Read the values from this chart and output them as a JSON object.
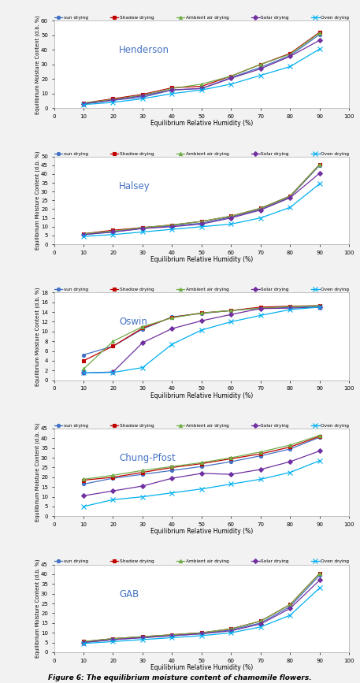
{
  "x": [
    10,
    20,
    30,
    40,
    50,
    60,
    70,
    80,
    90
  ],
  "series_labels": [
    "sun drying",
    "Shadow drying",
    "Ambient air drying",
    "Solar drying",
    "Oven drying"
  ],
  "series_colors": [
    "#4472C4",
    "#C00000",
    "#70AD47",
    "#7030A0",
    "#00B0F0"
  ],
  "series_markers": [
    "o",
    "s",
    "^",
    "D",
    "x"
  ],
  "series_markersizes": [
    3,
    3,
    3,
    3,
    4
  ],
  "subplot_titles": [
    "Henderson",
    "Halsey",
    "Oswin",
    "Chung-Pfost",
    "GAB"
  ],
  "subplot_title_color": "#4472C4",
  "xlabel": "Equilibrium Relative Humidity (%)",
  "ylabel": "Equilibrium Moisture Content (d.b. %)",
  "figure_caption": "Figure 6: The equilibrium moisture content of chamomile flowers.",
  "henderson": {
    "sun": [
      3.0,
      5.5,
      7.5,
      12.5,
      13.5,
      21.0,
      28.0,
      36.0,
      50.5
    ],
    "shadow": [
      3.5,
      6.5,
      9.5,
      14.0,
      15.0,
      22.0,
      30.0,
      37.5,
      52.0
    ],
    "ambient": [
      3.5,
      6.0,
      9.0,
      13.5,
      16.5,
      22.0,
      30.0,
      37.0,
      51.5
    ],
    "solar": [
      3.0,
      5.5,
      8.5,
      12.5,
      13.5,
      20.5,
      27.0,
      35.5,
      46.5
    ],
    "oven": [
      2.5,
      4.0,
      6.5,
      10.0,
      12.5,
      16.5,
      22.5,
      28.5,
      40.5
    ]
  },
  "halsey": {
    "sun": [
      5.5,
      7.0,
      9.0,
      10.5,
      12.0,
      15.5,
      20.0,
      27.0,
      45.0
    ],
    "shadow": [
      6.0,
      8.0,
      9.5,
      11.0,
      13.0,
      16.0,
      20.5,
      27.5,
      45.5
    ],
    "ambient": [
      6.0,
      7.5,
      9.5,
      11.0,
      13.0,
      16.0,
      20.5,
      27.5,
      45.5
    ],
    "solar": [
      5.5,
      7.0,
      9.0,
      10.0,
      11.5,
      15.0,
      19.5,
      26.5,
      40.5
    ],
    "oven": [
      4.5,
      5.5,
      7.0,
      8.5,
      10.0,
      11.5,
      15.0,
      21.0,
      34.5
    ]
  },
  "oswin": {
    "sun": [
      5.2,
      7.0,
      10.5,
      13.0,
      13.7,
      14.3,
      14.8,
      14.9,
      15.2
    ],
    "shadow": [
      4.0,
      7.0,
      10.7,
      12.9,
      13.8,
      14.3,
      15.0,
      15.2,
      15.3
    ],
    "ambient": [
      2.3,
      8.0,
      11.0,
      12.8,
      13.8,
      14.3,
      14.8,
      15.1,
      15.3
    ],
    "solar": [
      1.5,
      1.7,
      7.7,
      10.6,
      12.2,
      13.5,
      14.7,
      14.8,
      15.0
    ],
    "oven": [
      1.5,
      1.6,
      2.6,
      7.4,
      10.3,
      12.0,
      13.3,
      14.5,
      15.0
    ]
  },
  "chung": {
    "sun": [
      16.5,
      19.5,
      21.5,
      23.5,
      25.5,
      28.0,
      31.0,
      34.5,
      40.5
    ],
    "shadow": [
      18.5,
      20.0,
      22.5,
      25.0,
      27.0,
      29.5,
      32.0,
      35.5,
      41.0
    ],
    "ambient": [
      19.0,
      21.0,
      23.5,
      25.5,
      27.5,
      30.0,
      33.0,
      36.5,
      41.5
    ],
    "solar": [
      10.5,
      13.0,
      15.5,
      19.5,
      22.0,
      21.5,
      24.0,
      28.0,
      33.5
    ],
    "oven": [
      5.0,
      8.5,
      10.0,
      12.0,
      14.0,
      16.5,
      19.0,
      22.5,
      28.5
    ]
  },
  "gab": {
    "sun": [
      5.0,
      6.5,
      7.5,
      8.5,
      9.5,
      11.5,
      15.0,
      23.5,
      39.5
    ],
    "shadow": [
      5.5,
      7.0,
      8.0,
      9.0,
      10.0,
      12.0,
      16.0,
      24.5,
      40.5
    ],
    "ambient": [
      5.5,
      7.0,
      8.0,
      9.0,
      10.0,
      12.0,
      16.0,
      24.5,
      40.5
    ],
    "solar": [
      5.0,
      6.5,
      7.5,
      8.5,
      9.5,
      11.0,
      14.5,
      22.5,
      37.0
    ],
    "oven": [
      4.5,
      5.5,
      6.5,
      7.5,
      8.5,
      10.0,
      13.0,
      19.0,
      33.0
    ]
  },
  "ylims": {
    "henderson": [
      0,
      60
    ],
    "halsey": [
      0,
      50
    ],
    "oswin": [
      0,
      18
    ],
    "chung": [
      0,
      45
    ],
    "gab": [
      0,
      45
    ]
  },
  "yticks": {
    "henderson": [
      0,
      10,
      20,
      30,
      40,
      50,
      60
    ],
    "halsey": [
      0,
      5,
      10,
      15,
      20,
      25,
      30,
      35,
      40,
      45,
      50
    ],
    "oswin": [
      0,
      2,
      4,
      6,
      8,
      10,
      12,
      14,
      16,
      18
    ],
    "chung": [
      0,
      5,
      10,
      15,
      20,
      25,
      30,
      35,
      40,
      45
    ],
    "gab": [
      0,
      5,
      10,
      15,
      20,
      25,
      30,
      35,
      40,
      45
    ]
  },
  "bg_color": "#F2F2F2"
}
